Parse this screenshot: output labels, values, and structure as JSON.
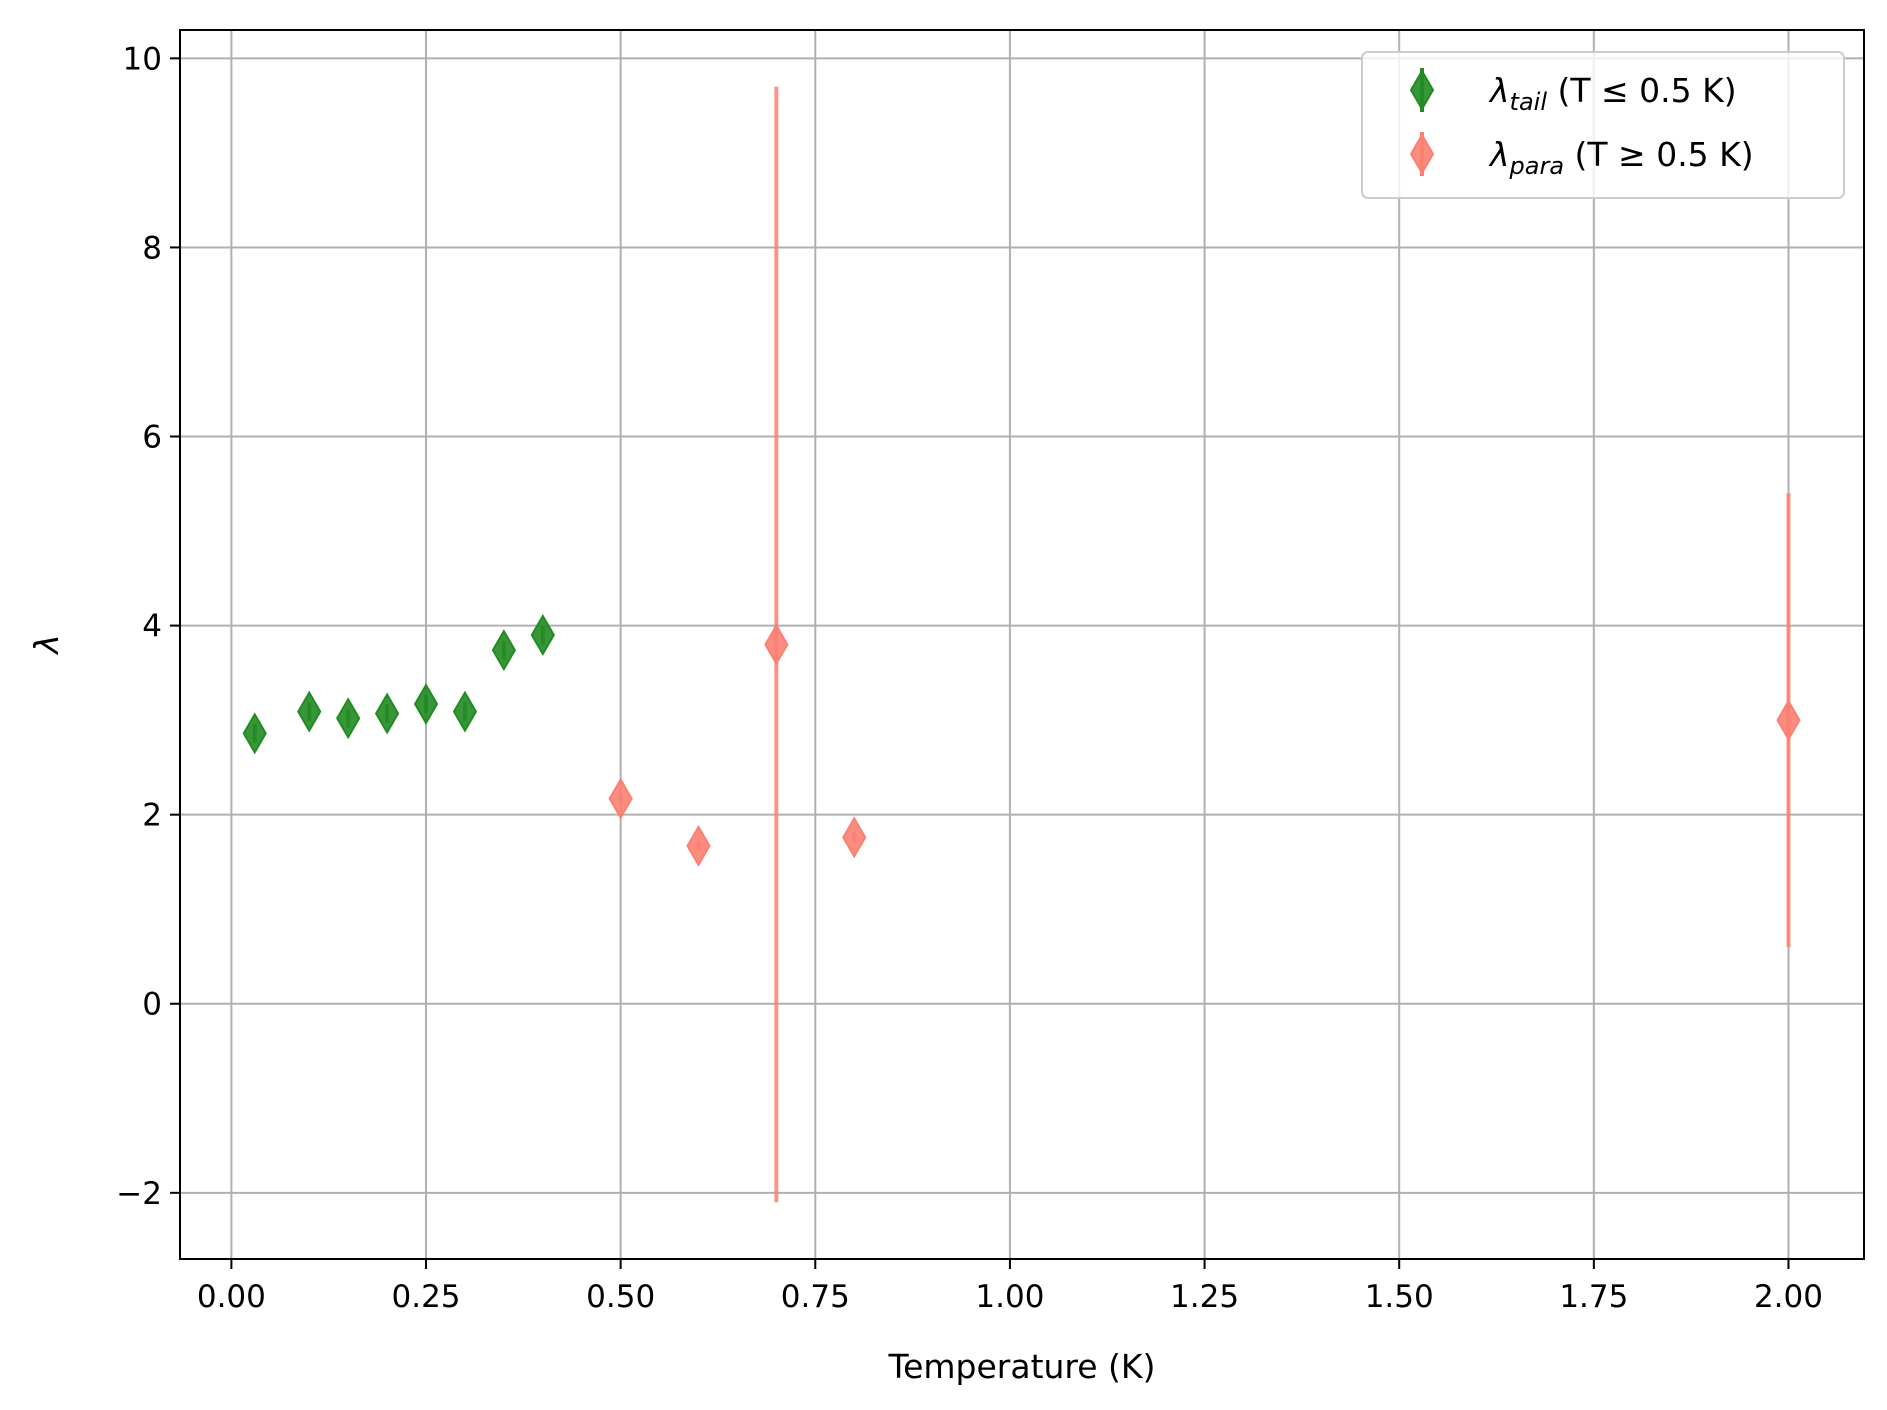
{
  "chart_data": {
    "type": "scatter",
    "title": "",
    "xlabel": "Temperature (K)",
    "ylabel": "λ",
    "xlim": [
      -0.066,
      2.097
    ],
    "ylim": [
      -2.7,
      10.3
    ],
    "xticks": [
      0.0,
      0.25,
      0.5,
      0.75,
      1.0,
      1.25,
      1.5,
      1.75,
      2.0
    ],
    "xtick_labels": [
      "0.00",
      "0.25",
      "0.50",
      "0.75",
      "1.00",
      "1.25",
      "1.50",
      "1.75",
      "2.00"
    ],
    "yticks": [
      -2,
      0,
      2,
      4,
      6,
      8,
      10
    ],
    "ytick_labels": [
      "−2",
      "0",
      "2",
      "4",
      "6",
      "8",
      "10"
    ],
    "grid": true,
    "legend_position": "top-right",
    "series": [
      {
        "name_symbol": "λ",
        "name_sub": "tail",
        "name_rest": " (T ≤ 0.5 K)",
        "marker": "thin-diamond",
        "color": "#228B22",
        "points": [
          {
            "x": 0.03,
            "y": 2.86,
            "err": 0.1
          },
          {
            "x": 0.1,
            "y": 3.09,
            "err": 0.1
          },
          {
            "x": 0.15,
            "y": 3.02,
            "err": 0.1
          },
          {
            "x": 0.2,
            "y": 3.07,
            "err": 0.1
          },
          {
            "x": 0.25,
            "y": 3.17,
            "err": 0.1
          },
          {
            "x": 0.3,
            "y": 3.09,
            "err": 0.1
          },
          {
            "x": 0.35,
            "y": 3.74,
            "err": 0.1
          },
          {
            "x": 0.4,
            "y": 3.9,
            "err": 0.1
          }
        ]
      },
      {
        "name_symbol": "λ",
        "name_sub": "para",
        "name_rest": " (T ≥ 0.5 K)",
        "marker": "thin-diamond",
        "color": "#FA8072",
        "points": [
          {
            "x": 0.5,
            "y": 2.17,
            "err": 0.05
          },
          {
            "x": 0.6,
            "y": 1.67,
            "err": 0.05
          },
          {
            "x": 0.7,
            "y": 3.8,
            "err": 5.9
          },
          {
            "x": 0.8,
            "y": 1.76,
            "err": 0.05
          },
          {
            "x": 2.0,
            "y": 3.0,
            "err": 2.4
          }
        ]
      }
    ]
  }
}
